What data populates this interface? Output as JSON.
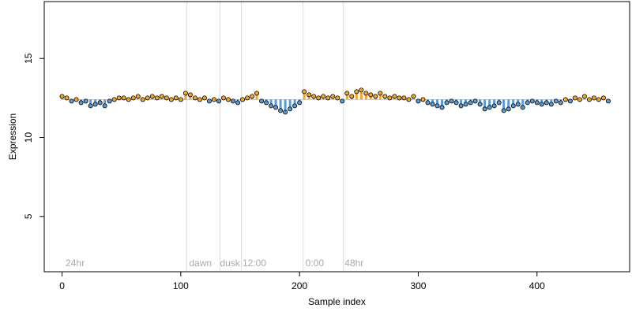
{
  "chart_data": {
    "type": "scatter",
    "title": "",
    "xlabel": "Sample index",
    "ylabel": "Expression",
    "xlim": [
      -15,
      478
    ],
    "ylim": [
      1.5,
      18.6
    ],
    "xticks": [
      0,
      100,
      200,
      300,
      400
    ],
    "yticks": [
      5,
      10,
      15
    ],
    "baseline": 12.4,
    "colors": {
      "above": "#f5a623",
      "below": "#5b9bd5",
      "vline": "#dddddd",
      "annotation": "#aaaaaa",
      "axis": "#000000",
      "point_stroke": "#000000"
    },
    "vlines": [
      105,
      133,
      151,
      203,
      237
    ],
    "annotations": [
      {
        "x": 3,
        "label": "24hr"
      },
      {
        "x": 107,
        "label": "dawn"
      },
      {
        "x": 133,
        "label": "dusk"
      },
      {
        "x": 152,
        "label": "12:00"
      },
      {
        "x": 205,
        "label": "0:00"
      },
      {
        "x": 238,
        "label": "48hr"
      }
    ],
    "series": [
      {
        "x": [
          0,
          4,
          8,
          12,
          16,
          20,
          24,
          28,
          32,
          36,
          40,
          44,
          48,
          52,
          56,
          60,
          64,
          68,
          72,
          76,
          80,
          84,
          88,
          92,
          96,
          100,
          104,
          108,
          112,
          116,
          120,
          124,
          128,
          132,
          136,
          140,
          144,
          148,
          152,
          156,
          160,
          164,
          168,
          172,
          176,
          180,
          184,
          188,
          192,
          196,
          200,
          204,
          208,
          212,
          216,
          220,
          224,
          228,
          232,
          236,
          240,
          244,
          248,
          252,
          256,
          260,
          264,
          268,
          272,
          276,
          280,
          284,
          288,
          292,
          296,
          300,
          304,
          308,
          312,
          316,
          320,
          324,
          328,
          332,
          336,
          340,
          344,
          348,
          352,
          356,
          360,
          364,
          368,
          372,
          376,
          380,
          384,
          388,
          392,
          396,
          400,
          404,
          408,
          412,
          416,
          420,
          424,
          428,
          432,
          436,
          440,
          444,
          448,
          452,
          456,
          460
        ],
        "y": [
          12.6,
          12.5,
          12.3,
          12.4,
          12.2,
          12.3,
          12.0,
          12.1,
          12.2,
          12.0,
          12.3,
          12.4,
          12.5,
          12.5,
          12.4,
          12.5,
          12.6,
          12.4,
          12.5,
          12.6,
          12.5,
          12.6,
          12.5,
          12.4,
          12.5,
          12.4,
          12.8,
          12.7,
          12.5,
          12.4,
          12.5,
          12.3,
          12.4,
          12.3,
          12.5,
          12.4,
          12.3,
          12.2,
          12.4,
          12.5,
          12.6,
          12.8,
          12.3,
          12.2,
          12.0,
          11.9,
          11.7,
          11.6,
          11.8,
          12.0,
          12.2,
          12.9,
          12.7,
          12.6,
          12.5,
          12.6,
          12.5,
          12.6,
          12.5,
          12.3,
          12.8,
          12.6,
          12.9,
          13.0,
          12.8,
          12.7,
          12.6,
          12.8,
          12.6,
          12.5,
          12.6,
          12.5,
          12.5,
          12.4,
          12.6,
          12.3,
          12.4,
          12.2,
          12.1,
          12.0,
          11.9,
          12.2,
          12.3,
          12.2,
          12.0,
          12.1,
          12.2,
          12.3,
          12.1,
          11.8,
          11.9,
          12.0,
          12.2,
          11.7,
          11.8,
          12.0,
          12.1,
          11.9,
          12.2,
          12.3,
          12.2,
          12.1,
          12.2,
          12.1,
          12.3,
          12.2,
          12.4,
          12.3,
          12.5,
          12.4,
          12.6,
          12.4,
          12.5,
          12.4,
          12.5,
          12.3
        ]
      }
    ]
  }
}
